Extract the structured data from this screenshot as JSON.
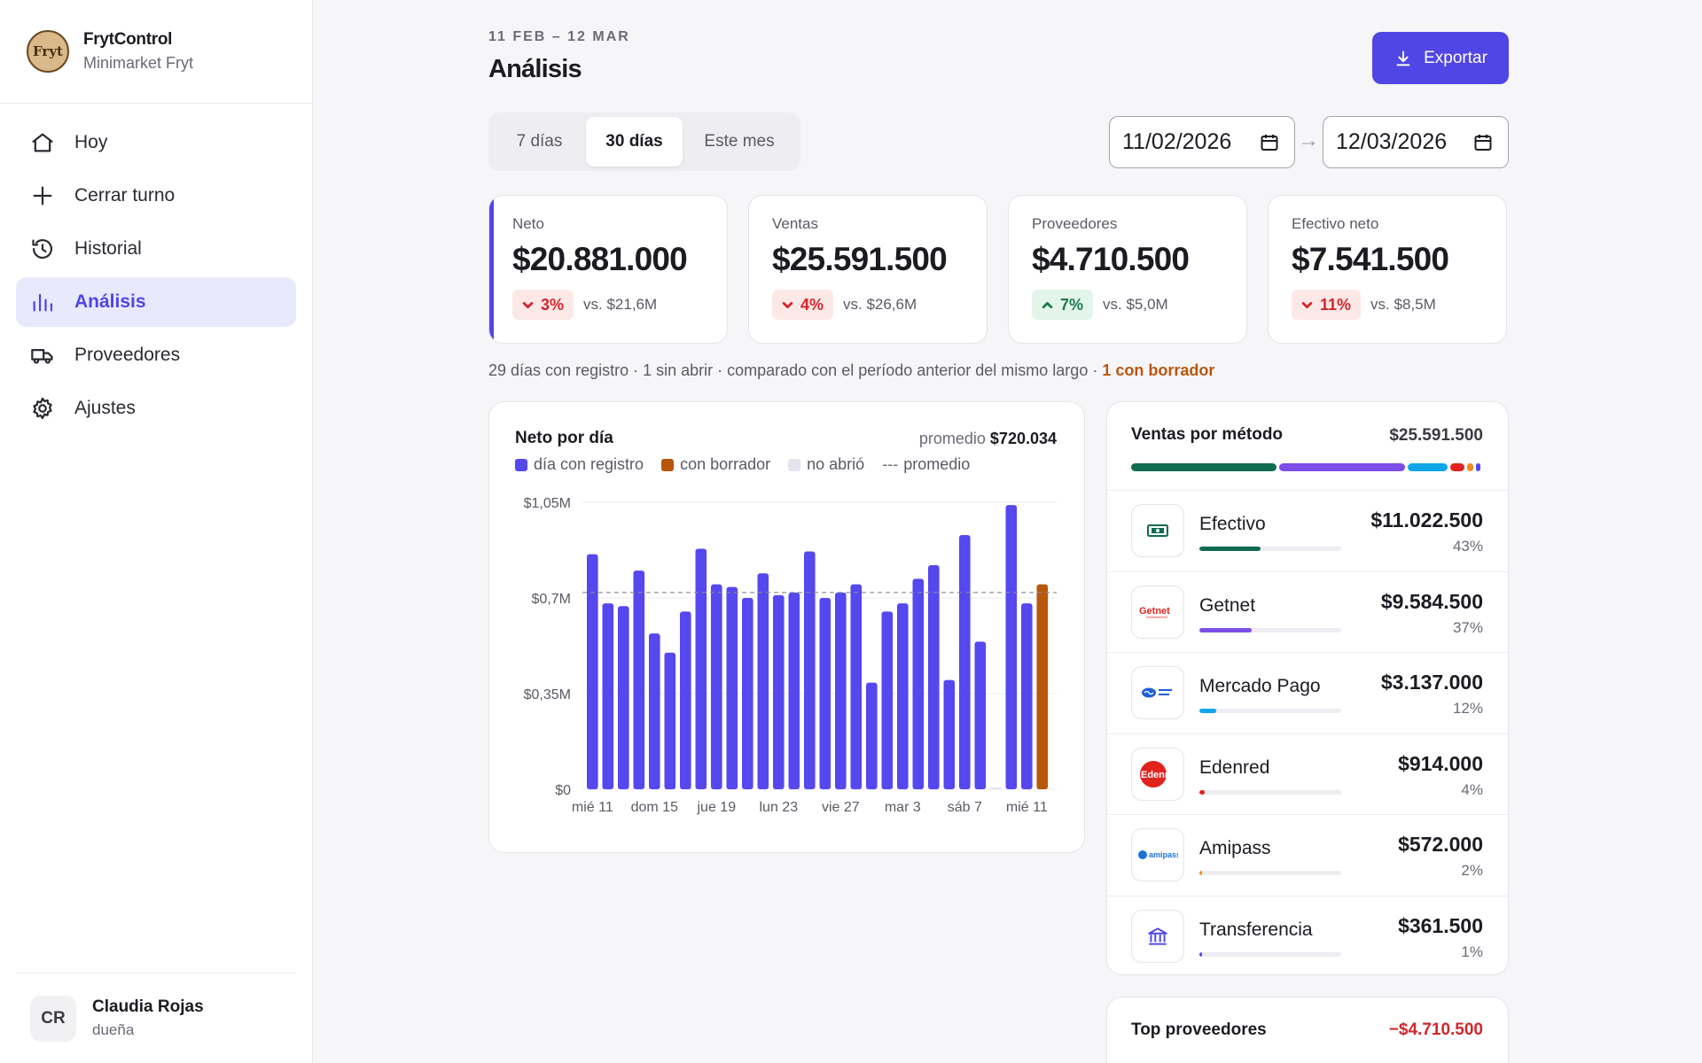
{
  "brand": {
    "name": "FrytControl",
    "subtitle": "Minimarket Fryt",
    "logo_text": "Fryt"
  },
  "nav": {
    "items": [
      {
        "label": "Hoy",
        "icon": "home-icon"
      },
      {
        "label": "Cerrar turno",
        "icon": "plus-icon"
      },
      {
        "label": "Historial",
        "icon": "history-icon"
      },
      {
        "label": "Análisis",
        "icon": "bar-chart-icon",
        "active": true
      },
      {
        "label": "Proveedores",
        "icon": "truck-icon"
      },
      {
        "label": "Ajustes",
        "icon": "gear-icon"
      }
    ]
  },
  "user": {
    "initials": "CR",
    "name": "Claudia Rojas",
    "role": "dueña"
  },
  "header": {
    "period": "11 FEB – 12 MAR",
    "title": "Análisis",
    "export_label": "Exportar"
  },
  "range_tabs": [
    {
      "label": "7 días",
      "active": false
    },
    {
      "label": "30 días",
      "active": true
    },
    {
      "label": "Este mes",
      "active": false
    }
  ],
  "dates": {
    "from": "11/02/2026",
    "to": "12/03/2026",
    "arrow": "→"
  },
  "kpis": [
    {
      "label": "Neto",
      "value": "$20.881.000",
      "delta": "3%",
      "direction": "down",
      "vs": "vs. $21,6M"
    },
    {
      "label": "Ventas",
      "value": "$25.591.500",
      "delta": "4%",
      "direction": "down",
      "vs": "vs. $26,6M"
    },
    {
      "label": "Proveedores",
      "value": "$4.710.500",
      "delta": "7%",
      "direction": "up",
      "vs": "vs. $5,0M"
    },
    {
      "label": "Efectivo neto",
      "value": "$7.541.500",
      "delta": "11%",
      "direction": "down",
      "vs": "vs. $8,5M"
    }
  ],
  "summary": {
    "text": "29 días con registro · 1 sin abrir · comparado con el período anterior del mismo largo · ",
    "draft": "1 con borrador"
  },
  "chart": {
    "title": "Neto por día",
    "avg_label": "promedio",
    "avg_value": "$720.034",
    "legend": [
      {
        "label": "día con registro",
        "color": "#5548ef"
      },
      {
        "label": "con borrador",
        "color": "#b8560c"
      },
      {
        "label": "no abrió",
        "color": "#e4e4ec"
      },
      {
        "label": "promedio",
        "color": "#8a8a96",
        "dashed": true
      }
    ]
  },
  "chart_data": {
    "type": "bar",
    "title": "Neto por día",
    "y_ticks": [
      "$0",
      "$0,35M",
      "$0,7M",
      "$1,05M"
    ],
    "ylim": [
      0,
      1.05
    ],
    "y_unit": "millones CLP",
    "x_tick_labels": [
      "mié 11",
      "dom 15",
      "jue 19",
      "lun 23",
      "vie 27",
      "mar 3",
      "sáb 7",
      "mié 11"
    ],
    "average": 0.72,
    "series": [
      {
        "name": "día con registro",
        "values": [
          0.86,
          0.68,
          0.67,
          0.8,
          0.57,
          0.5,
          0.65,
          0.88,
          0.75,
          0.74,
          0.7,
          0.79,
          0.71,
          0.72,
          0.87,
          0.7,
          0.72,
          0.75,
          0.39,
          0.65,
          0.68,
          0.77,
          0.82,
          0.4,
          0.93,
          0.54,
          0.0,
          1.04,
          0.68,
          0.0
        ]
      },
      {
        "name": "con borrador",
        "values": [
          0,
          0,
          0,
          0,
          0,
          0,
          0,
          0,
          0,
          0,
          0,
          0,
          0,
          0,
          0,
          0,
          0,
          0,
          0,
          0,
          0,
          0,
          0,
          0,
          0,
          0,
          0,
          0,
          0,
          0.75
        ]
      }
    ],
    "not_opened_index": 26,
    "colors": {
      "registro": "#5548ef",
      "borrador": "#b8560c",
      "grid": "#ececf1",
      "avg": "#8a8a96"
    }
  },
  "methods": {
    "title": "Ventas por método",
    "total": "$25.591.500",
    "items": [
      {
        "name": "Efectivo",
        "amount": "$11.022.500",
        "pct": "43%",
        "share": 0.43,
        "color": "#0f6b4f",
        "icon": "cash-icon"
      },
      {
        "name": "Getnet",
        "amount": "$9.584.500",
        "pct": "37%",
        "share": 0.37,
        "color": "#7c4ee8",
        "icon": "getnet-logo"
      },
      {
        "name": "Mercado Pago",
        "amount": "$3.137.000",
        "pct": "12%",
        "share": 0.12,
        "color": "#0ea5e9",
        "icon": "mercado-pago-logo"
      },
      {
        "name": "Edenred",
        "amount": "$914.000",
        "pct": "4%",
        "share": 0.04,
        "color": "#e0231c",
        "icon": "edenred-logo"
      },
      {
        "name": "Amipass",
        "amount": "$572.000",
        "pct": "2%",
        "share": 0.02,
        "color": "#f08a24",
        "icon": "amipass-logo"
      },
      {
        "name": "Transferencia",
        "amount": "$361.500",
        "pct": "1%",
        "share": 0.01,
        "color": "#5548ef",
        "icon": "bank-icon"
      }
    ]
  },
  "top_providers": {
    "title": "Top proveedores",
    "total": "−$4.710.500"
  }
}
